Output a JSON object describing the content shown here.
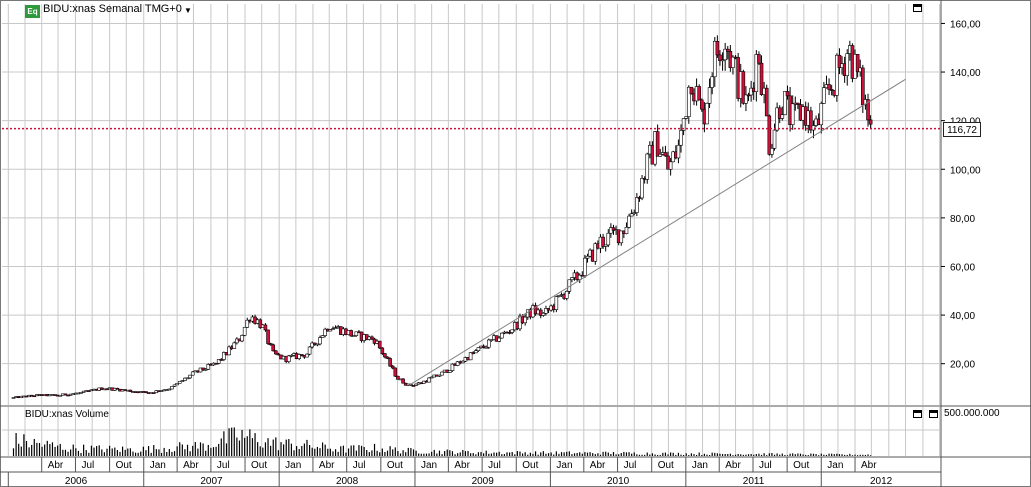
{
  "header": {
    "icon_label": "Eq",
    "title": "BIDU:xnas Semanal TMG+0",
    "dropdown_arrow": "▼"
  },
  "volume_panel": {
    "title": "BIDU:xnas Volume",
    "scale_label": "500.000.000"
  },
  "price_marker": "116,72",
  "colors": {
    "up_candle": "#ffffff",
    "down_candle": "#d0103a",
    "wick": "#000000",
    "reference_line": "#d0103a",
    "trend_line": "#808080",
    "grid": "#c8c8c8"
  },
  "chart_data": [
    {
      "type": "candlestick",
      "title": "BIDU:xnas Semanal TMG+0",
      "x_axis": {
        "month_labels": [
          "Abr",
          "Jul",
          "Out",
          "Jan",
          "Abr",
          "Jul",
          "Out",
          "Jan",
          "Abr",
          "Jul",
          "Out",
          "Jan",
          "Abr",
          "Jul",
          "Out",
          "Jan",
          "Abr",
          "Jul",
          "Out",
          "Jan",
          "Abr",
          "Jul",
          "Out",
          "Jan",
          "Abr"
        ],
        "year_labels": [
          "2006",
          "2007",
          "2008",
          "2009",
          "2010",
          "2011",
          "2012"
        ]
      },
      "y_axis": {
        "tick_labels": [
          "20,00",
          "40,00",
          "60,00",
          "80,00",
          "100,00",
          "120,00",
          "140,00",
          "160,00"
        ],
        "range": [
          3,
          168
        ]
      },
      "grid": true,
      "price_reference_line": 116.72,
      "trend_line": {
        "from": {
          "date": "2008-12",
          "value": 11
        },
        "to": {
          "date": "2012-08",
          "value": 137
        }
      },
      "close_series": {
        "dates": [
          "2006-01",
          "2006-03",
          "2006-05",
          "2006-07",
          "2006-09",
          "2006-11",
          "2007-01",
          "2007-03",
          "2007-05",
          "2007-07",
          "2007-09",
          "2007-10",
          "2007-11",
          "2007-12",
          "2008-01",
          "2008-03",
          "2008-05",
          "2008-07",
          "2008-09",
          "2008-10",
          "2008-11",
          "2008-12",
          "2009-01",
          "2009-03",
          "2009-05",
          "2009-07",
          "2009-09",
          "2009-11",
          "2009-12",
          "2010-01",
          "2010-03",
          "2010-05",
          "2010-07",
          "2010-08",
          "2010-09",
          "2010-10",
          "2010-11",
          "2010-12",
          "2011-01",
          "2011-02",
          "2011-03",
          "2011-04",
          "2011-05",
          "2011-06",
          "2011-07",
          "2011-08",
          "2011-09",
          "2011-10",
          "2011-11",
          "2011-12",
          "2012-01",
          "2012-02",
          "2012-03",
          "2012-04",
          "2012-05"
        ],
        "values": [
          6,
          7,
          7,
          8,
          10,
          9,
          8,
          10,
          16,
          20,
          30,
          40,
          36,
          24,
          22,
          24,
          36,
          32,
          30,
          22,
          14,
          11,
          12,
          16,
          22,
          28,
          34,
          42,
          40,
          45,
          56,
          70,
          75,
          85,
          100,
          112,
          100,
          110,
          140,
          120,
          145,
          155,
          140,
          125,
          150,
          110,
          130,
          120,
          125,
          115,
          130,
          140,
          150,
          135,
          116
        ]
      }
    },
    {
      "type": "bar",
      "title": "BIDU:xnas Volume",
      "y_axis": {
        "tick_labels": [
          "500.000.000"
        ]
      },
      "volume_profile": {
        "dates": [
          "2006-01",
          "2006-06",
          "2006-12",
          "2007-06",
          "2007-09",
          "2007-12",
          "2008-03",
          "2008-06",
          "2008-09",
          "2008-12",
          "2009-06",
          "2009-12",
          "2010-06",
          "2010-12",
          "2011-06",
          "2011-12",
          "2012-05"
        ],
        "values": [
          300,
          150,
          120,
          200,
          400,
          250,
          200,
          130,
          150,
          100,
          70,
          60,
          55,
          45,
          40,
          30,
          25
        ]
      }
    }
  ]
}
